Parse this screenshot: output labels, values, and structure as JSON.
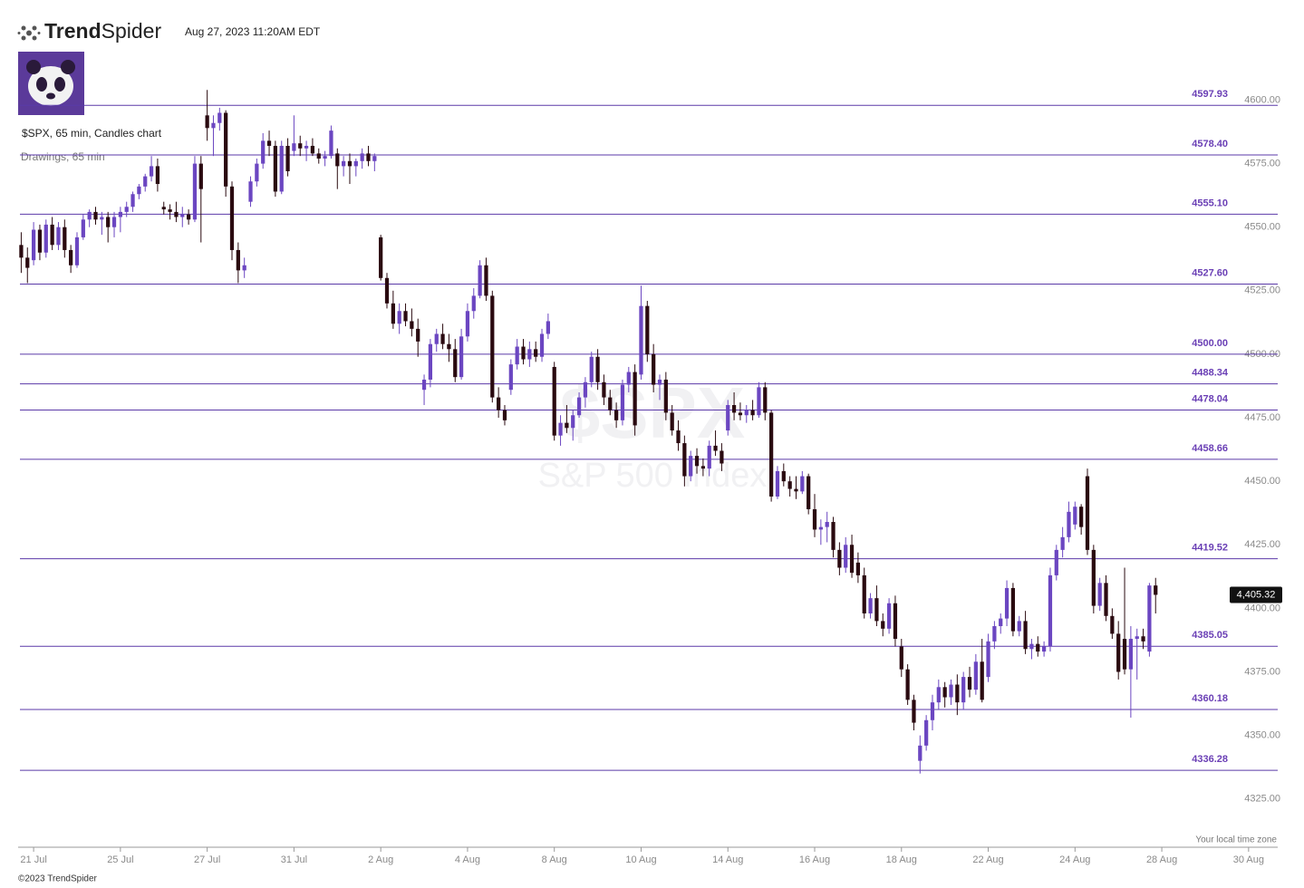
{
  "header": {
    "brand_bold": "Trend",
    "brand_light": "Spider",
    "timestamp": "Aug 27, 2023 11:20AM EDT",
    "footer": "©2023 TrendSpider"
  },
  "chart_data": {
    "type": "candlestick",
    "title": "$SPX, 65 min, Candles chart",
    "subtitle": "Drawings, 65 min",
    "watermark": "$SPX",
    "watermark_sub": "S&P 500 Index",
    "timezone_note": "Your local time zone",
    "up_color": "#6b46c1",
    "down_color": "#2a0a10",
    "level_color": "#5b3aa8",
    "xlim": [
      -0.5,
      202.7
    ],
    "ylim": [
      4306,
      4618
    ],
    "yticks": [
      {
        "value": 4325,
        "label": "4325.00"
      },
      {
        "value": 4350,
        "label": "4350.00"
      },
      {
        "value": 4375,
        "label": "4375.00"
      },
      {
        "value": 4400,
        "label": "4400.00"
      },
      {
        "value": 4425,
        "label": "4425.00"
      },
      {
        "value": 4450,
        "label": "4450.00"
      },
      {
        "value": 4475,
        "label": "4475.00"
      },
      {
        "value": 4500,
        "label": "4500.00"
      },
      {
        "value": 4525,
        "label": "4525.00"
      },
      {
        "value": 4550,
        "label": "4550.00"
      },
      {
        "value": 4575,
        "label": "4575.00"
      },
      {
        "value": 4600,
        "label": "4600.00"
      }
    ],
    "xticks": [
      {
        "value": 2,
        "label": "21 Jul"
      },
      {
        "value": 16,
        "label": "25 Jul"
      },
      {
        "value": 30,
        "label": "27 Jul"
      },
      {
        "value": 44,
        "label": "31 Jul"
      },
      {
        "value": 58,
        "label": "2 Aug"
      },
      {
        "value": 72,
        "label": "4 Aug"
      },
      {
        "value": 86,
        "label": "8 Aug"
      },
      {
        "value": 100,
        "label": "10 Aug"
      },
      {
        "value": 114,
        "label": "14 Aug"
      },
      {
        "value": 128,
        "label": "16 Aug"
      },
      {
        "value": 142,
        "label": "18 Aug"
      },
      {
        "value": 156,
        "label": "22 Aug"
      },
      {
        "value": 170,
        "label": "24 Aug"
      },
      {
        "value": 184,
        "label": "28 Aug"
      },
      {
        "value": 198,
        "label": "30 Aug"
      }
    ],
    "levels": [
      {
        "value": 4597.93,
        "label": "4597.93"
      },
      {
        "value": 4578.4,
        "label": "4578.40"
      },
      {
        "value": 4555.1,
        "label": "4555.10"
      },
      {
        "value": 4527.6,
        "label": "4527.60"
      },
      {
        "value": 4500,
        "label": "4500.00"
      },
      {
        "value": 4488.34,
        "label": "4488.34"
      },
      {
        "value": 4478.04,
        "label": "4478.04"
      },
      {
        "value": 4458.66,
        "label": "4458.66"
      },
      {
        "value": 4419.52,
        "label": "4419.52"
      },
      {
        "value": 4385.05,
        "label": "4385.05"
      },
      {
        "value": 4360.18,
        "label": "4360.18"
      },
      {
        "value": 4336.28,
        "label": "4336.28"
      }
    ],
    "last_price": {
      "value": 4405.32,
      "label": "4,405.32"
    },
    "candles": [
      [
        4543,
        4548,
        4532,
        4538
      ],
      [
        4538,
        4542,
        4528,
        4534
      ],
      [
        4537,
        4552,
        4535,
        4549
      ],
      [
        4549,
        4551,
        4537,
        4540
      ],
      [
        4540,
        4553,
        4538,
        4551
      ],
      [
        4551,
        4554,
        4541,
        4543
      ],
      [
        4543,
        4552,
        4541,
        4550
      ],
      [
        4550,
        4553,
        4538,
        4541
      ],
      [
        4541,
        4543,
        4532,
        4535
      ],
      [
        4535,
        4548,
        4534,
        4546
      ],
      [
        4546,
        4555,
        4545,
        4553
      ],
      [
        4553,
        4557,
        4550,
        4556
      ],
      [
        4556,
        4558,
        4551,
        4553
      ],
      [
        4553,
        4556,
        4547,
        4554
      ],
      [
        4554,
        4556,
        4544,
        4550
      ],
      [
        4550,
        4556,
        4546,
        4554
      ],
      [
        4554,
        4558,
        4548,
        4556
      ],
      [
        4556,
        4560,
        4554,
        4558
      ],
      [
        4558,
        4564,
        4556,
        4563
      ],
      [
        4563,
        4567,
        4561,
        4566
      ],
      [
        4566,
        4571,
        4564,
        4570
      ],
      [
        4570,
        4578,
        4568,
        4574
      ],
      [
        4574,
        4577,
        4564,
        4567
      ],
      [
        4558,
        4560,
        4555,
        4557
      ],
      [
        4557,
        4559,
        4553,
        4556
      ],
      [
        4556,
        4560,
        4552,
        4554
      ],
      [
        4554,
        4558,
        4550,
        4555
      ],
      [
        4555,
        4557,
        4551,
        4553
      ],
      [
        4553,
        4578,
        4552,
        4575
      ],
      [
        4575,
        4578,
        4544,
        4565
      ],
      [
        4594,
        4604,
        4584,
        4589
      ],
      [
        4589,
        4594,
        4578,
        4591
      ],
      [
        4591,
        4597,
        4588,
        4595
      ],
      [
        4595,
        4596,
        4562,
        4566
      ],
      [
        4566,
        4568,
        4537,
        4541
      ],
      [
        4541,
        4544,
        4528,
        4533
      ],
      [
        4533,
        4538,
        4530,
        4535
      ],
      [
        4560,
        4570,
        4558,
        4568
      ],
      [
        4568,
        4577,
        4566,
        4575
      ],
      [
        4575,
        4587,
        4573,
        4584
      ],
      [
        4584,
        4588,
        4578,
        4582
      ],
      [
        4582,
        4584,
        4562,
        4564
      ],
      [
        4564,
        4584,
        4563,
        4582
      ],
      [
        4582,
        4585,
        4570,
        4572
      ],
      [
        4580,
        4594,
        4578,
        4583
      ],
      [
        4583,
        4586,
        4578,
        4581
      ],
      [
        4581,
        4584,
        4576,
        4582
      ],
      [
        4582,
        4585,
        4578,
        4579
      ],
      [
        4579,
        4581,
        4575,
        4577
      ],
      [
        4577,
        4580,
        4574,
        4578
      ],
      [
        4578,
        4590,
        4577,
        4588
      ],
      [
        4579,
        4581,
        4565,
        4574
      ],
      [
        4574,
        4578,
        4570,
        4576
      ],
      [
        4576,
        4579,
        4567,
        4574
      ],
      [
        4574,
        4577,
        4570,
        4576
      ],
      [
        4576,
        4581,
        4573,
        4579
      ],
      [
        4579,
        4582,
        4574,
        4576
      ],
      [
        4576,
        4579,
        4572,
        4578
      ],
      [
        4546,
        4547,
        4529,
        4530
      ],
      [
        4530,
        4532,
        4518,
        4520
      ],
      [
        4520,
        4525,
        4510,
        4512
      ],
      [
        4512,
        4520,
        4508,
        4517
      ],
      [
        4517,
        4520,
        4511,
        4513
      ],
      [
        4513,
        4518,
        4507,
        4510
      ],
      [
        4510,
        4514,
        4499,
        4505
      ],
      [
        4486,
        4492,
        4480,
        4490
      ],
      [
        4490,
        4506,
        4487,
        4504
      ],
      [
        4504,
        4510,
        4501,
        4508
      ],
      [
        4508,
        4512,
        4502,
        4504
      ],
      [
        4504,
        4508,
        4497,
        4502
      ],
      [
        4502,
        4506,
        4489,
        4491
      ],
      [
        4491,
        4510,
        4490,
        4507
      ],
      [
        4507,
        4520,
        4505,
        4517
      ],
      [
        4517,
        4526,
        4514,
        4523
      ],
      [
        4523,
        4537,
        4522,
        4535
      ],
      [
        4535,
        4538,
        4521,
        4523
      ],
      [
        4523,
        4525,
        4481,
        4483
      ],
      [
        4483,
        4487,
        4475,
        4478
      ],
      [
        4478,
        4480,
        4472,
        4474
      ],
      [
        4486,
        4498,
        4484,
        4496
      ],
      [
        4496,
        4506,
        4494,
        4503
      ],
      [
        4503,
        4506,
        4496,
        4498
      ],
      [
        4498,
        4505,
        4495,
        4502
      ],
      [
        4502,
        4505,
        4497,
        4499
      ],
      [
        4499,
        4510,
        4497,
        4508
      ],
      [
        4508,
        4516,
        4506,
        4513
      ],
      [
        4495,
        4497,
        4466,
        4468
      ],
      [
        4468,
        4476,
        4464,
        4473
      ],
      [
        4473,
        4480,
        4469,
        4471
      ],
      [
        4471,
        4478,
        4466,
        4476
      ],
      [
        4476,
        4485,
        4475,
        4483
      ],
      [
        4483,
        4491,
        4479,
        4489
      ],
      [
        4489,
        4501,
        4487,
        4499
      ],
      [
        4499,
        4502,
        4486,
        4489
      ],
      [
        4489,
        4492,
        4480,
        4483
      ],
      [
        4483,
        4486,
        4476,
        4478
      ],
      [
        4478,
        4481,
        4471,
        4474
      ],
      [
        4474,
        4490,
        4472,
        4488
      ],
      [
        4488,
        4495,
        4485,
        4493
      ],
      [
        4493,
        4496,
        4468,
        4472
      ],
      [
        4492,
        4527,
        4490,
        4519
      ],
      [
        4519,
        4521,
        4497,
        4500
      ],
      [
        4500,
        4504,
        4485,
        4488
      ],
      [
        4488,
        4492,
        4482,
        4490
      ],
      [
        4490,
        4493,
        4474,
        4477
      ],
      [
        4477,
        4480,
        4468,
        4470
      ],
      [
        4470,
        4474,
        4462,
        4465
      ],
      [
        4465,
        4468,
        4448,
        4452
      ],
      [
        4452,
        4462,
        4450,
        4460
      ],
      [
        4460,
        4463,
        4453,
        4456
      ],
      [
        4456,
        4459,
        4452,
        4455
      ],
      [
        4455,
        4466,
        4452,
        4464
      ],
      [
        4464,
        4470,
        4460,
        4462
      ],
      [
        4462,
        4465,
        4454,
        4457
      ],
      [
        4470,
        4482,
        4468,
        4480
      ],
      [
        4480,
        4485,
        4474,
        4477
      ],
      [
        4477,
        4481,
        4474,
        4476
      ],
      [
        4476,
        4480,
        4473,
        4478
      ],
      [
        4478,
        4482,
        4474,
        4476
      ],
      [
        4476,
        4489,
        4475,
        4487
      ],
      [
        4487,
        4489,
        4474,
        4477
      ],
      [
        4477,
        4478,
        4442,
        4444
      ],
      [
        4444,
        4456,
        4443,
        4454
      ],
      [
        4454,
        4457,
        4448,
        4450
      ],
      [
        4450,
        4452,
        4444,
        4447
      ],
      [
        4447,
        4452,
        4443,
        4446
      ],
      [
        4446,
        4454,
        4445,
        4452
      ],
      [
        4452,
        4453,
        4437,
        4439
      ],
      [
        4439,
        4445,
        4428,
        4431
      ],
      [
        4431,
        4435,
        4425,
        4432
      ],
      [
        4432,
        4438,
        4426,
        4434
      ],
      [
        4434,
        4436,
        4420,
        4423
      ],
      [
        4423,
        4426,
        4413,
        4416
      ],
      [
        4416,
        4428,
        4414,
        4425
      ],
      [
        4425,
        4429,
        4412,
        4414
      ],
      [
        4418,
        4422,
        4410,
        4413
      ],
      [
        4413,
        4416,
        4396,
        4398
      ],
      [
        4398,
        4406,
        4396,
        4404
      ],
      [
        4404,
        4409,
        4393,
        4395
      ],
      [
        4395,
        4398,
        4389,
        4392
      ],
      [
        4392,
        4404,
        4390,
        4402
      ],
      [
        4402,
        4405,
        4385,
        4388
      ],
      [
        4385,
        4388,
        4373,
        4376
      ],
      [
        4376,
        4378,
        4362,
        4364
      ],
      [
        4364,
        4366,
        4352,
        4355
      ],
      [
        4340,
        4350,
        4335,
        4346
      ],
      [
        4346,
        4358,
        4344,
        4356
      ],
      [
        4356,
        4366,
        4352,
        4363
      ],
      [
        4363,
        4372,
        4360,
        4369
      ],
      [
        4369,
        4371,
        4361,
        4365
      ],
      [
        4365,
        4372,
        4362,
        4370
      ],
      [
        4370,
        4374,
        4358,
        4363
      ],
      [
        4363,
        4375,
        4360,
        4373
      ],
      [
        4373,
        4377,
        4365,
        4368
      ],
      [
        4368,
        4382,
        4366,
        4379
      ],
      [
        4379,
        4388,
        4363,
        4364
      ],
      [
        4373,
        4390,
        4371,
        4387
      ],
      [
        4387,
        4395,
        4384,
        4393
      ],
      [
        4393,
        4398,
        4390,
        4396
      ],
      [
        4396,
        4411,
        4393,
        4408
      ],
      [
        4408,
        4410,
        4389,
        4391
      ],
      [
        4391,
        4397,
        4389,
        4395
      ],
      [
        4395,
        4399,
        4382,
        4384
      ],
      [
        4384,
        4388,
        4380,
        4386
      ],
      [
        4386,
        4389,
        4381,
        4383
      ],
      [
        4383,
        4387,
        4381,
        4385
      ],
      [
        4385,
        4416,
        4383,
        4413
      ],
      [
        4413,
        4425,
        4411,
        4423
      ],
      [
        4423,
        4432,
        4420,
        4428
      ],
      [
        4428,
        4442,
        4426,
        4438
      ],
      [
        4433,
        4442,
        4431,
        4440
      ],
      [
        4440,
        4441,
        4429,
        4432
      ],
      [
        4452,
        4455,
        4421,
        4423
      ],
      [
        4423,
        4425,
        4398,
        4401
      ],
      [
        4401,
        4412,
        4399,
        4410
      ],
      [
        4410,
        4413,
        4395,
        4397
      ],
      [
        4397,
        4400,
        4388,
        4390
      ],
      [
        4390,
        4395,
        4372,
        4375
      ],
      [
        4388,
        4416,
        4374,
        4376
      ],
      [
        4376,
        4393,
        4357,
        4388
      ],
      [
        4388,
        4392,
        4372,
        4389
      ],
      [
        4389,
        4392,
        4384,
        4387
      ],
      [
        4383,
        4410,
        4381,
        4409
      ],
      [
        4409,
        4412,
        4398,
        4405.32
      ]
    ]
  }
}
